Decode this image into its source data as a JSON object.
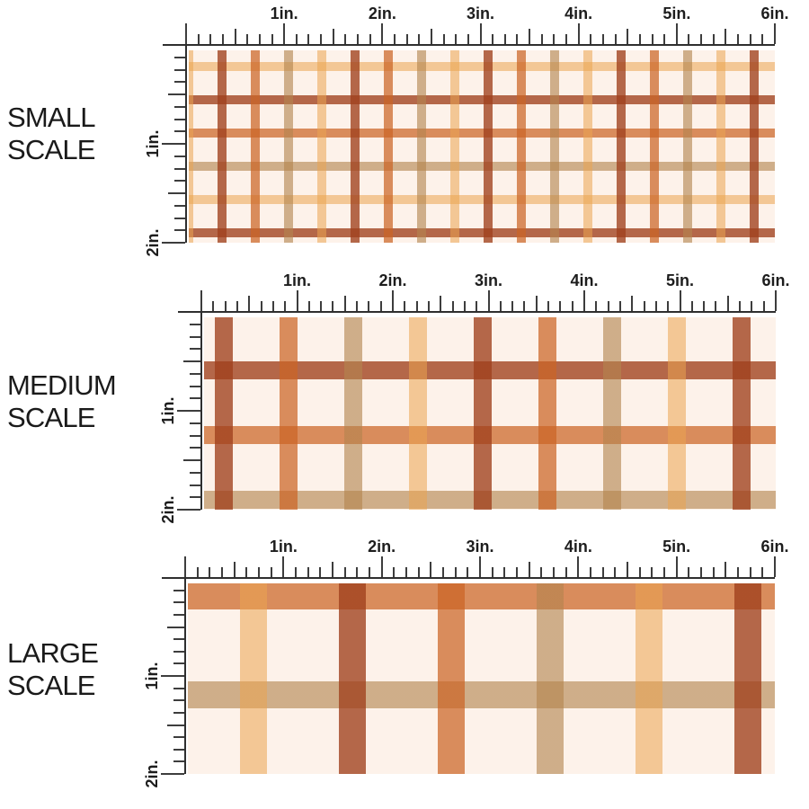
{
  "colors": {
    "page_background": "#ffffff",
    "fabric_background": "#fdf2ea",
    "stripe_rust": "#b4663f",
    "stripe_orange": "#d98c5c",
    "stripe_tan": "#cfae89",
    "stripe_peach": "#f3c795",
    "ruler_tick": "#3d3d3d",
    "text": "#1a1a1a"
  },
  "ruler": {
    "top_labels": [
      "1in.",
      "2in.",
      "3in.",
      "4in.",
      "5in.",
      "6in."
    ],
    "side_labels": [
      "1in.",
      "2in."
    ]
  },
  "sections": [
    {
      "scale": "small",
      "label_line1": "SMALL",
      "label_line2": "SCALE"
    },
    {
      "scale": "medium",
      "label_line1": "MEDIUM",
      "label_line2": "SCALE"
    },
    {
      "scale": "large",
      "label_line1": "LARGE",
      "label_line2": "SCALE"
    }
  ]
}
